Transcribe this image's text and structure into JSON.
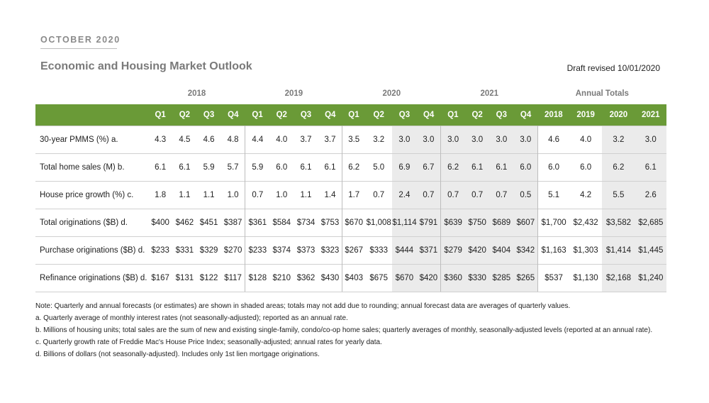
{
  "header": {
    "month": "OCTOBER 2020",
    "title": "Economic and Housing Market Outlook",
    "draft": "Draft revised 10/01/2020"
  },
  "table": {
    "year_groups": [
      "2018",
      "2019",
      "2020",
      "2021",
      "Annual Totals"
    ],
    "quarters": [
      "Q1",
      "Q2",
      "Q3",
      "Q4",
      "Q1",
      "Q2",
      "Q3",
      "Q4",
      "Q1",
      "Q2",
      "Q3",
      "Q4",
      "Q1",
      "Q2",
      "Q3",
      "Q4",
      "2018",
      "2019",
      "2020",
      "2021"
    ],
    "rows": [
      {
        "label": "30-year PMMS (%) a.",
        "values": [
          "4.3",
          "4.5",
          "4.6",
          "4.8",
          "4.4",
          "4.0",
          "3.7",
          "3.7",
          "3.5",
          "3.2",
          "3.0",
          "3.0",
          "3.0",
          "3.0",
          "3.0",
          "3.0",
          "4.6",
          "4.0",
          "3.2",
          "3.0"
        ]
      },
      {
        "label": "Total home sales (M) b.",
        "values": [
          "6.1",
          "6.1",
          "5.9",
          "5.7",
          "5.9",
          "6.0",
          "6.1",
          "6.1",
          "6.2",
          "5.0",
          "6.9",
          "6.7",
          "6.2",
          "6.1",
          "6.1",
          "6.0",
          "6.0",
          "6.0",
          "6.2",
          "6.1"
        ]
      },
      {
        "label": "House price growth (%) c.",
        "values": [
          "1.8",
          "1.1",
          "1.1",
          "1.0",
          "0.7",
          "1.0",
          "1.1",
          "1.4",
          "1.7",
          "0.7",
          "2.4",
          "0.7",
          "0.7",
          "0.7",
          "0.7",
          "0.5",
          "5.1",
          "4.2",
          "5.5",
          "2.6"
        ]
      },
      {
        "label": "Total originations ($B) d.",
        "values": [
          "$400",
          "$462",
          "$451",
          "$387",
          "$361",
          "$584",
          "$734",
          "$753",
          "$670",
          "$1,008",
          "$1,114",
          "$791",
          "$639",
          "$750",
          "$689",
          "$607",
          "$1,700",
          "$2,432",
          "$3,582",
          "$2,685"
        ]
      },
      {
        "label": "Purchase originations ($B) d.",
        "values": [
          "$233",
          "$331",
          "$329",
          "$270",
          "$233",
          "$374",
          "$373",
          "$323",
          "$267",
          "$333",
          "$444",
          "$371",
          "$279",
          "$420",
          "$404",
          "$342",
          "$1,163",
          "$1,303",
          "$1,414",
          "$1,445"
        ]
      },
      {
        "label": "Refinance originations ($B) d.",
        "values": [
          "$167",
          "$131",
          "$122",
          "$117",
          "$128",
          "$210",
          "$362",
          "$430",
          "$403",
          "$675",
          "$670",
          "$420",
          "$360",
          "$330",
          "$285",
          "$265",
          "$537",
          "$1,130",
          "$2,168",
          "$1,240"
        ]
      }
    ]
  },
  "notes": {
    "main": "Note: Quarterly and annual forecasts (or estimates) are shown in shaded areas; totals may not add due to rounding; annual forecast data are averages of quarterly values.",
    "a": "a. Quarterly average of monthly interest rates (not seasonally-adjusted); reported as an annual rate.",
    "b": "b. Millions of housing units; total sales are the sum of new and existing single-family, condo/co-op home sales; quarterly averages of monthly, seasonally-adjusted levels (reported at an annual rate).",
    "c": "c. Quarterly growth rate of Freddie Mac's House Price Index; seasonally-adjusted; annual rates for yearly data.",
    "d": "d. Billions of dollars (not seasonally-adjusted). Includes only 1st lien mortgage originations."
  }
}
